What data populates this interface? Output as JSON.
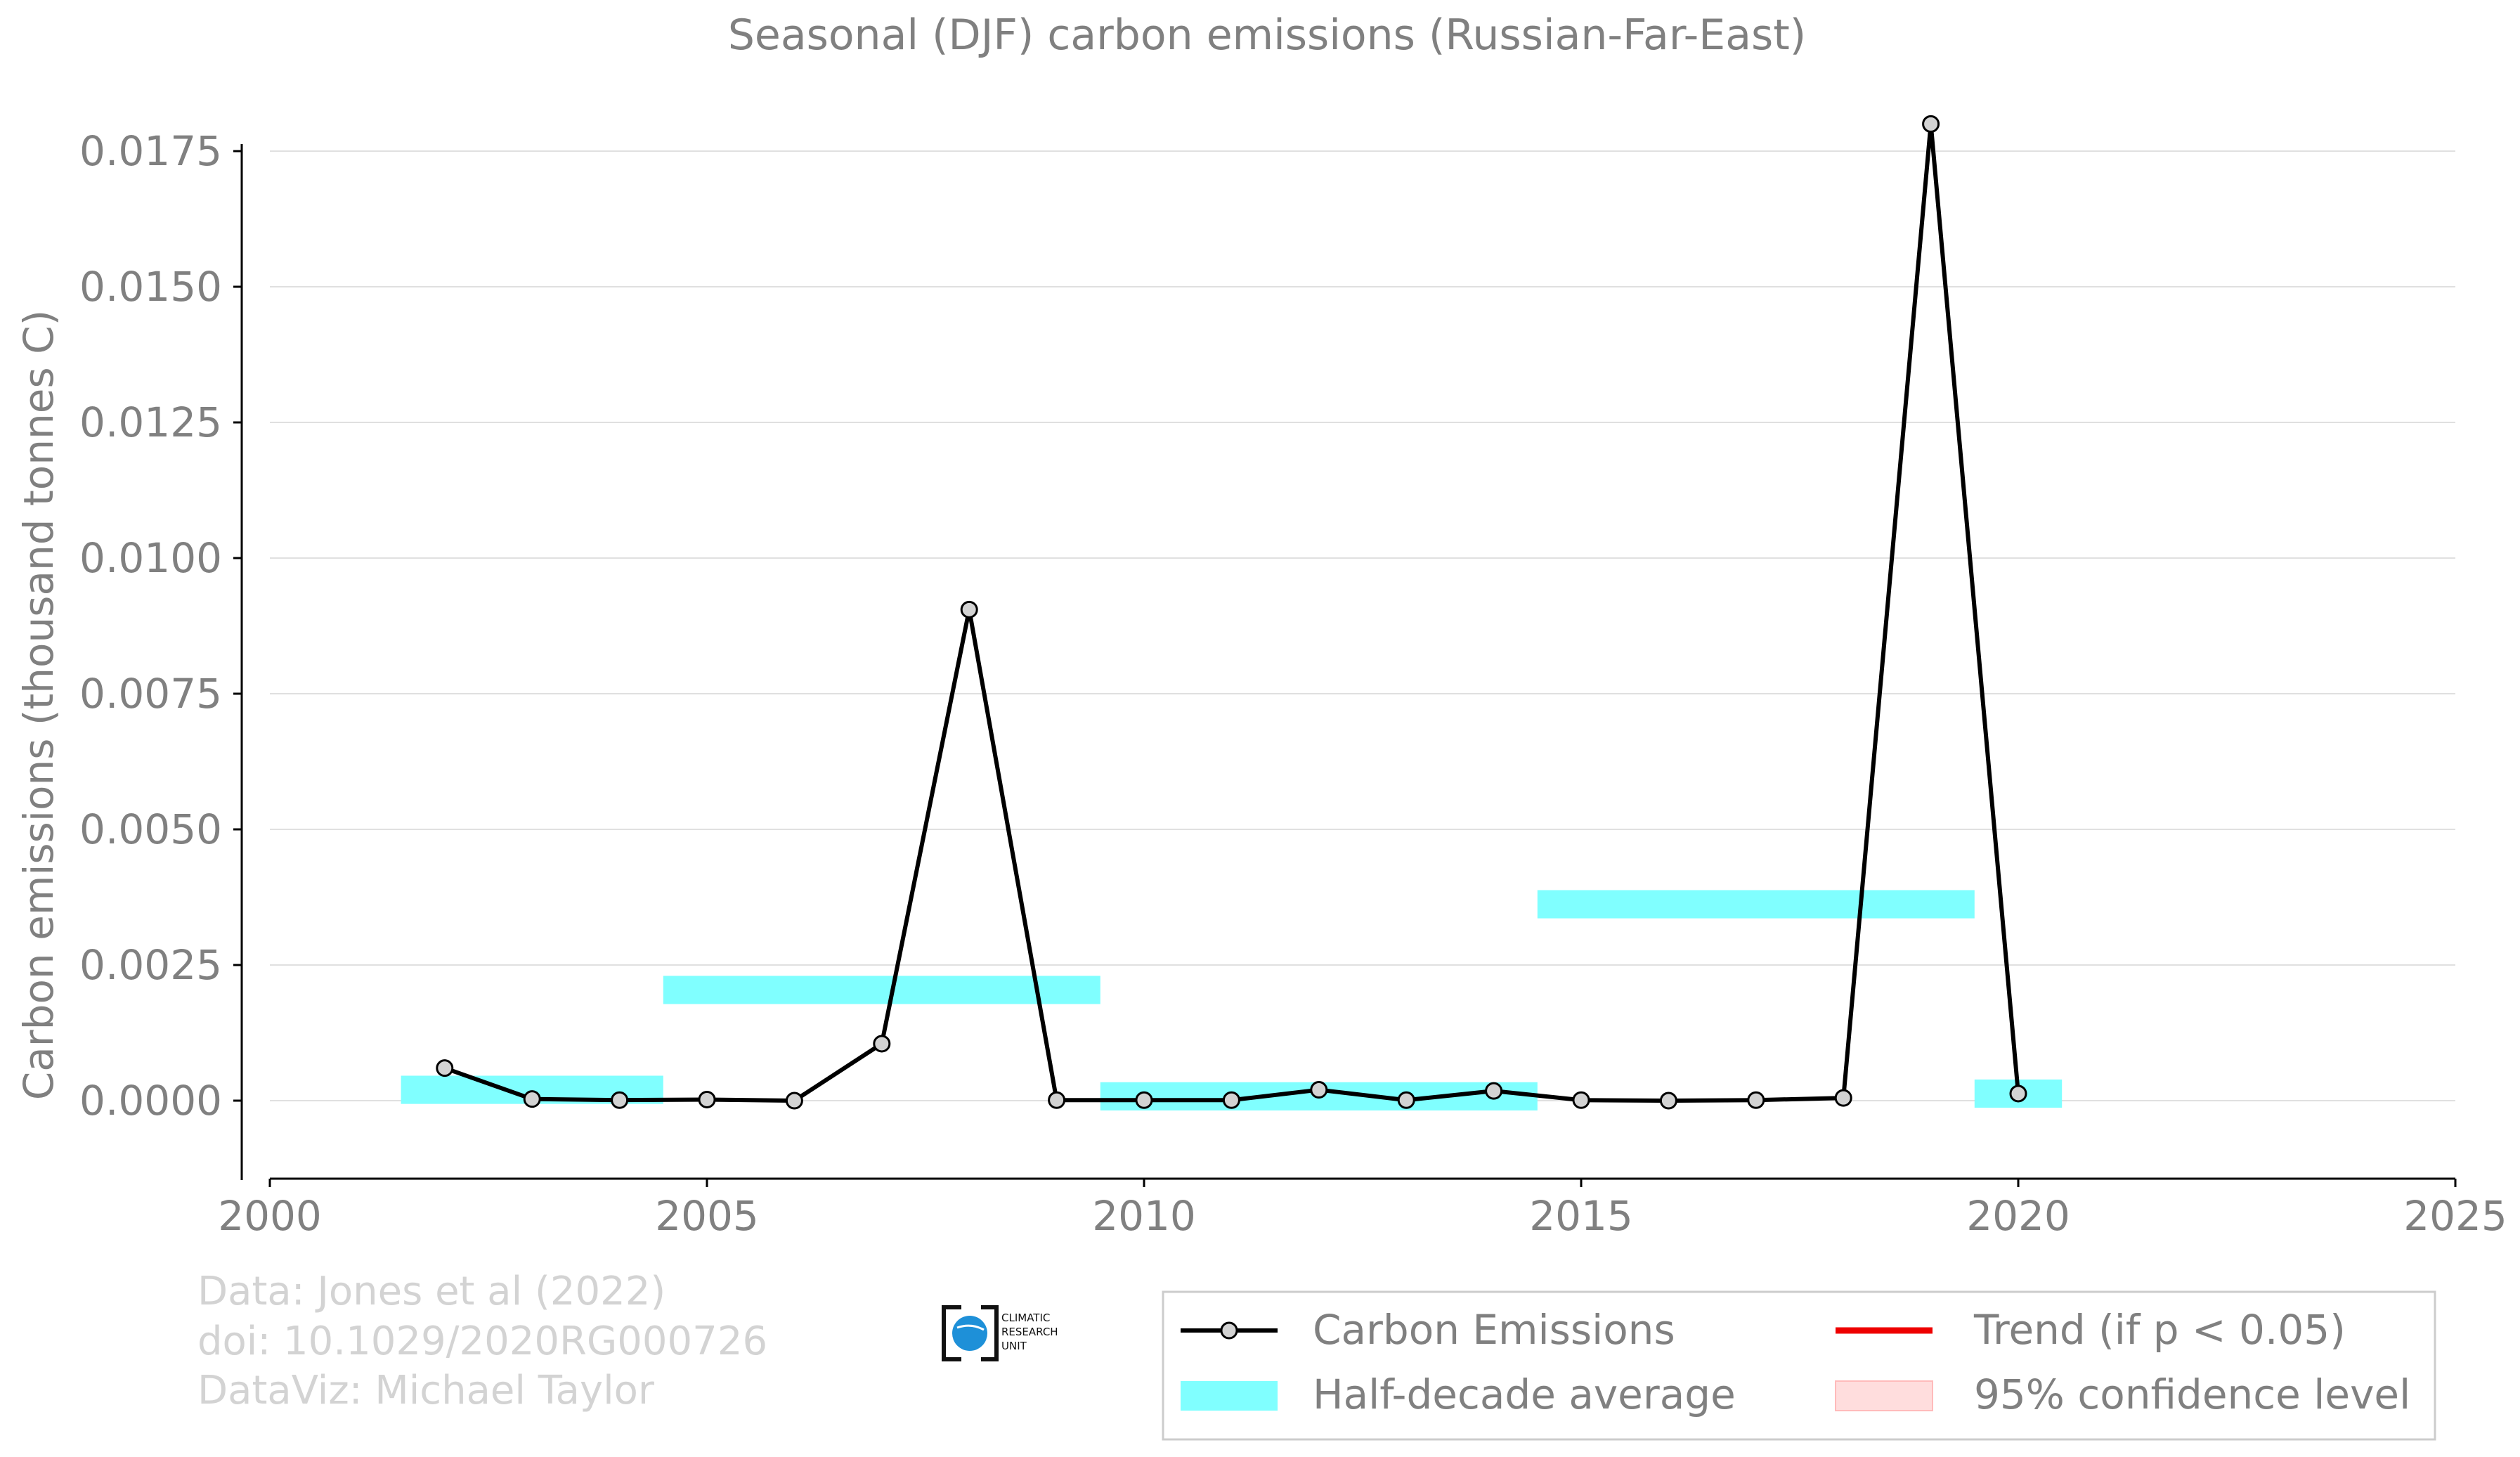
{
  "chart_data": {
    "type": "line",
    "title": "Seasonal (DJF) carbon emissions (Russian-Far-East)",
    "xlabel": "",
    "ylabel": "Carbon emissions (thousand tonnes C)",
    "xlim": [
      2000,
      2025
    ],
    "ylim": [
      -0.0015,
      0.0182
    ],
    "x_ticks": [
      "2000",
      "2005",
      "2010",
      "2015",
      "2020",
      "2025"
    ],
    "y_ticks": [
      "0.0000",
      "0.0025",
      "0.0050",
      "0.0075",
      "0.0100",
      "0.0125",
      "0.0150",
      "0.0175"
    ],
    "grid": true,
    "legend_position": "bottom-right",
    "series": [
      {
        "name": "Carbon Emissions",
        "color": "#000000",
        "x": [
          2002,
          2003,
          2004,
          2005,
          2006,
          2007,
          2008,
          2009,
          2010,
          2011,
          2012,
          2013,
          2014,
          2015,
          2016,
          2017,
          2018,
          2019,
          2020
        ],
        "y": [
          0.0006,
          3e-05,
          1e-05,
          2e-05,
          0.0,
          0.00105,
          0.00905,
          1e-05,
          1e-05,
          1e-05,
          0.0002,
          1e-05,
          0.00018,
          1e-05,
          0.0,
          1e-05,
          5e-05,
          0.018,
          0.00013
        ]
      }
    ],
    "half_decade_average": {
      "name": "Half-decade average",
      "color": "#80ffff",
      "bands": [
        {
          "x_start": 2001.5,
          "x_end": 2004.5,
          "value": 0.0002,
          "halfwidth": 0.00026
        },
        {
          "x_start": 2004.5,
          "x_end": 2009.5,
          "value": 0.00204,
          "halfwidth": 0.00026
        },
        {
          "x_start": 2009.5,
          "x_end": 2014.5,
          "value": 8e-05,
          "halfwidth": 0.00026
        },
        {
          "x_start": 2014.5,
          "x_end": 2019.5,
          "value": 0.00362,
          "halfwidth": 0.00026
        },
        {
          "x_start": 2019.5,
          "x_end": 2020.5,
          "value": 0.00013,
          "halfwidth": 0.00026
        }
      ]
    },
    "legend": [
      {
        "label": "Carbon Emissions",
        "kind": "line-marker",
        "color": "#000000"
      },
      {
        "label": "Trend (if p < 0.05)",
        "kind": "line",
        "color": "#ee0000"
      },
      {
        "label": "Half-decade average",
        "kind": "band",
        "color": "#80ffff"
      },
      {
        "label": "95% confidence level",
        "kind": "band",
        "color": "#ffdddd"
      }
    ],
    "credits": [
      "Data: Jones et al (2022)",
      "doi: 10.1029/2020RG000726",
      "DataViz: Michael Taylor"
    ],
    "logo_text": [
      "CLIMATIC",
      "RESEARCH",
      "UNIT"
    ]
  },
  "colors": {
    "axis_text": "#808080",
    "grid": "#e0e0e0",
    "credits": "#d3d3d3",
    "marker_fill": "#d3d3d3",
    "logo_blue": "#1e90d8"
  }
}
